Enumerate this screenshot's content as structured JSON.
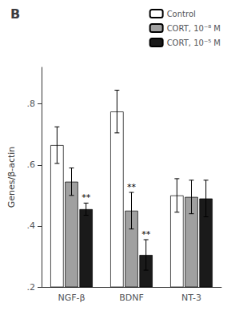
{
  "chart_data": {
    "type": "bar",
    "title": "B",
    "categories": [
      "NGF-β",
      "BDNF",
      "NT-3"
    ],
    "series": [
      {
        "name": "Control",
        "color": "white",
        "values": [
          0.665,
          0.775,
          0.5
        ],
        "errors": [
          0.06,
          0.07,
          0.055
        ]
      },
      {
        "name": "CORT, 10⁻⁸ M",
        "color": "#a0a0a0",
        "values": [
          0.545,
          0.45,
          0.495
        ],
        "errors": [
          0.045,
          0.06,
          0.055
        ]
      },
      {
        "name": "CORT, 10⁻⁵ M",
        "color": "#1a1a1a",
        "values": [
          0.455,
          0.305,
          0.49
        ],
        "errors": [
          0.02,
          0.05,
          0.06
        ]
      }
    ],
    "y_label": "Genes/β-actin",
    "ylim": [
      0.2,
      0.92
    ],
    "yticks": [
      {
        "value": 0.2,
        "label": ".2"
      },
      {
        "value": 0.4,
        "label": ".4"
      },
      {
        "value": 0.6,
        "label": ".6"
      },
      {
        "value": 0.8,
        "label": ".8"
      }
    ],
    "annotations": [
      {
        "text": "**",
        "category": "NGF-β",
        "series": "CORT, 10⁻⁵ M"
      },
      {
        "text": "**",
        "category": "BDNF",
        "series": "CORT, 10⁻⁸ M"
      },
      {
        "text": "**",
        "category": "BDNF",
        "series": "CORT, 10⁻⁵ M"
      }
    ],
    "legend": "upper right",
    "grid": false
  }
}
